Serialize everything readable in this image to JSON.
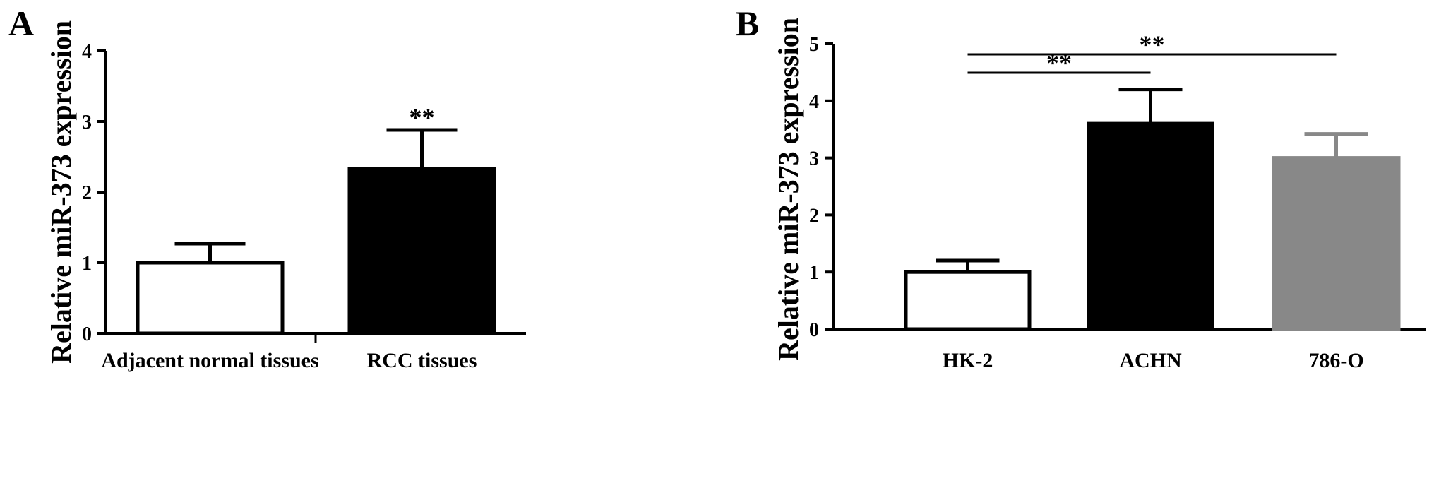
{
  "panels": [
    {
      "letter": "A"
    },
    {
      "letter": "B"
    }
  ],
  "chart_data": [
    {
      "type": "bar",
      "panel": "A",
      "categories": [
        "Adjacent normal tissues",
        "RCC tissues"
      ],
      "values": [
        1.0,
        2.33
      ],
      "errors": [
        0.27,
        0.55
      ],
      "colors": [
        "#ffffff",
        "#000000"
      ],
      "ylabel": "Relative miR-373 expression",
      "xlabel": "",
      "ylim": [
        0,
        4
      ],
      "yticks": [
        "0",
        "1",
        "2",
        "3",
        "4"
      ],
      "annotations": [
        {
          "type": "bar-mark",
          "category": "RCC tissues",
          "text": "**"
        }
      ]
    },
    {
      "type": "bar",
      "panel": "B",
      "categories": [
        "HK-2",
        "ACHN",
        "786-O"
      ],
      "values": [
        1.0,
        3.6,
        3.0
      ],
      "errors": [
        0.2,
        0.6,
        0.42
      ],
      "colors": [
        "#ffffff",
        "#000000",
        "#888888"
      ],
      "ylabel": "Relative miR-373 expression",
      "xlabel": "",
      "ylim": [
        0,
        5
      ],
      "yticks": [
        "0",
        "1",
        "2",
        "3",
        "4",
        "5"
      ],
      "annotations": [
        {
          "type": "bracket",
          "from": "HK-2",
          "to": "ACHN",
          "text": "**"
        },
        {
          "type": "bracket",
          "from": "HK-2",
          "to": "786-O",
          "text": "**"
        }
      ]
    }
  ]
}
